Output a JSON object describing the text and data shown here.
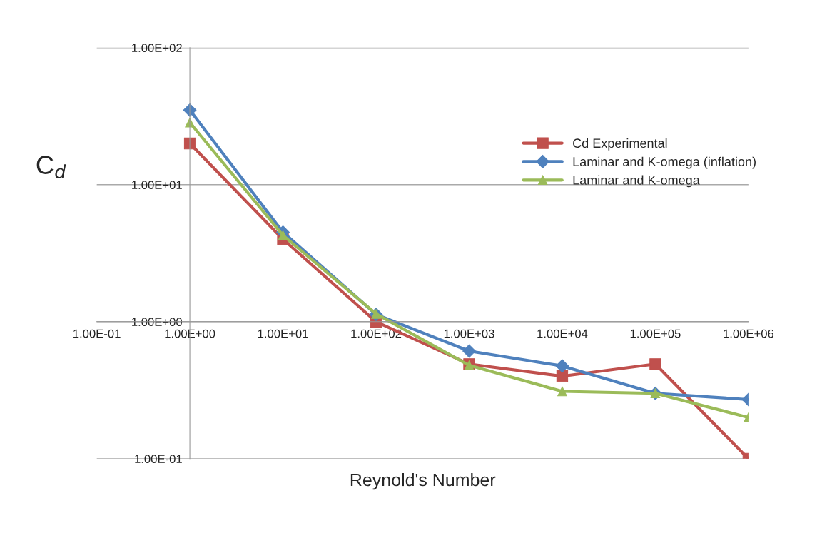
{
  "chart_data": {
    "type": "line",
    "xlabel": "Reynold's Number",
    "ylabel": "C$_{d}$",
    "x": [
      1,
      10,
      100,
      1000,
      10000,
      100000,
      1000000
    ],
    "series": [
      {
        "name": "Cd Experimental",
        "color": "#c0504d",
        "marker": "square",
        "values": [
          20,
          4,
          1.0,
          0.49,
          0.4,
          0.49,
          0.1
        ]
      },
      {
        "name": "Laminar and K-omega (inflation)",
        "color": "#4f81bd",
        "marker": "diamond",
        "values": [
          35,
          4.5,
          1.13,
          0.61,
          0.475,
          0.3,
          0.27
        ]
      },
      {
        "name": "Laminar and K-omega",
        "color": "#9bbb59",
        "marker": "triangle",
        "values": [
          28.4,
          4.27,
          1.14,
          0.48,
          0.31,
          0.3,
          0.2
        ]
      }
    ],
    "log": "xy",
    "xlim": [
      0.1,
      1000000
    ],
    "ylim": [
      0.1,
      100
    ],
    "xticks": [
      {
        "value": 0.1,
        "label": "1.00E-01"
      },
      {
        "value": 1,
        "label": "1.00E+00"
      },
      {
        "value": 10,
        "label": "1.00E+01"
      },
      {
        "value": 100,
        "label": "1.00E+02"
      },
      {
        "value": 1000,
        "label": "1.00E+03"
      },
      {
        "value": 10000,
        "label": "1.00E+04"
      },
      {
        "value": 100000,
        "label": "1.00E+05"
      },
      {
        "value": 1000000,
        "label": "1.00E+06"
      }
    ],
    "yticks": [
      {
        "value": 0.1,
        "label": "1.00E-01"
      },
      {
        "value": 1,
        "label": "1.00E+00"
      },
      {
        "value": 10,
        "label": "1.00E+01"
      },
      {
        "value": 100,
        "label": "1.00E+02"
      }
    ],
    "grid": "y",
    "legend": "right",
    "line_style": "solid"
  }
}
